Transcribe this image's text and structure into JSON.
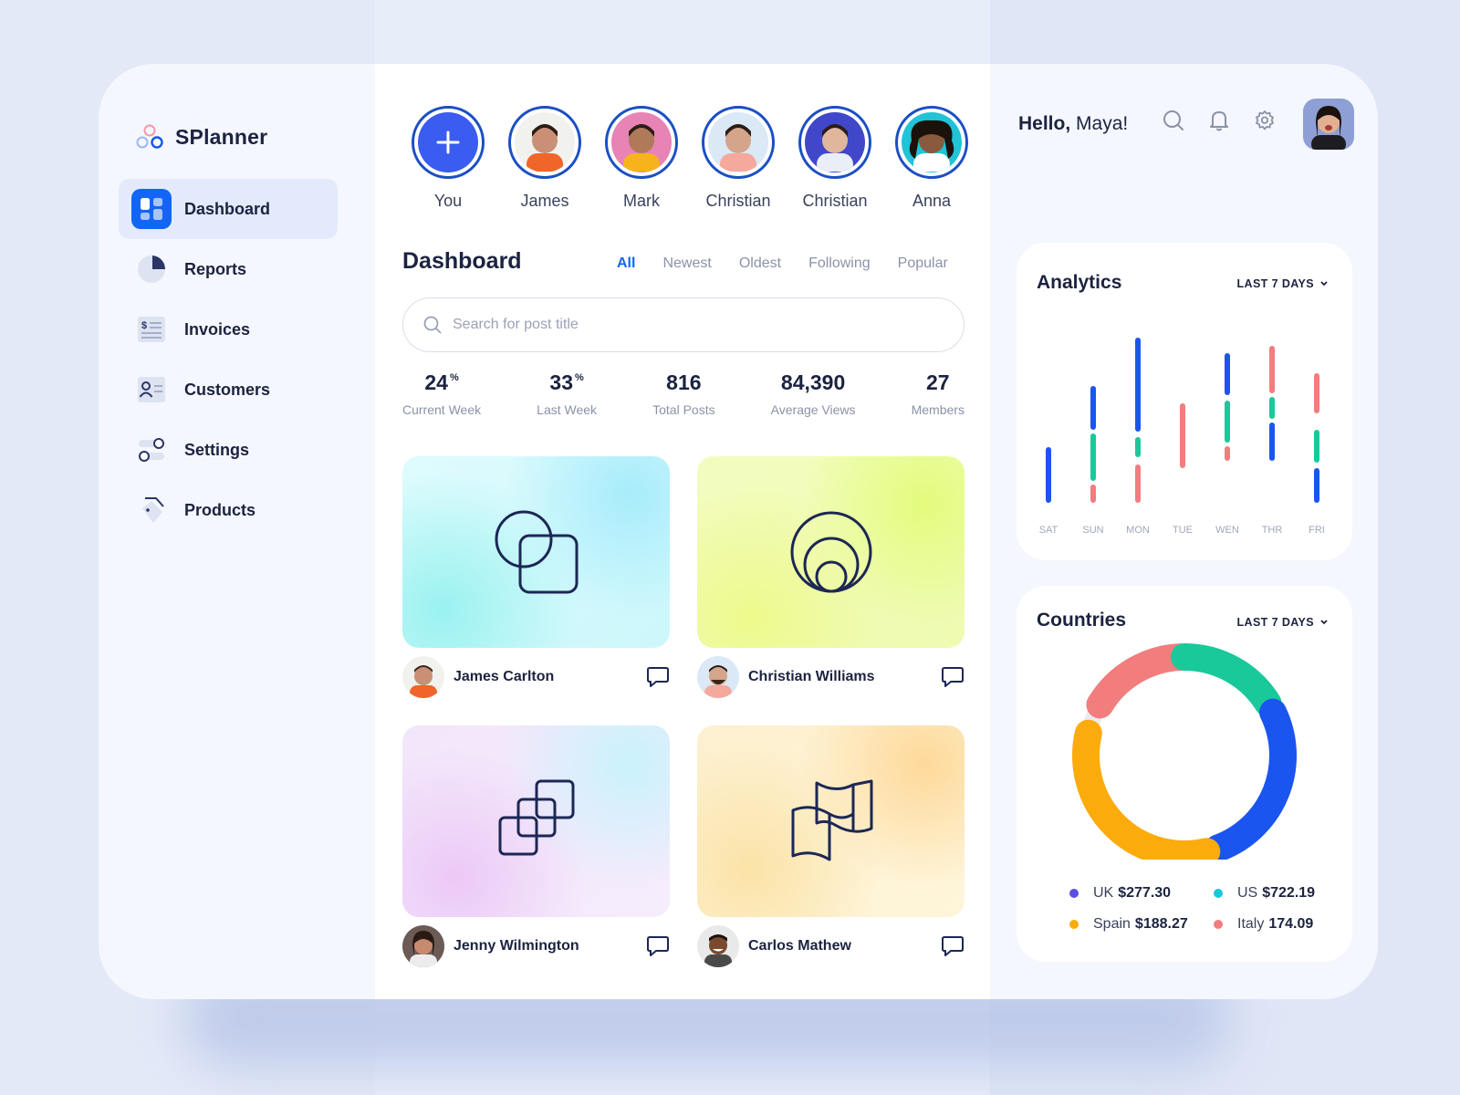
{
  "app": {
    "name": "SPlanner"
  },
  "nav": [
    {
      "label": "Dashboard",
      "icon": "dashboard-icon",
      "active": true
    },
    {
      "label": "Reports",
      "icon": "pie-chart-icon"
    },
    {
      "label": "Invoices",
      "icon": "invoice-icon"
    },
    {
      "label": "Customers",
      "icon": "customer-card-icon"
    },
    {
      "label": "Settings",
      "icon": "toggle-settings-icon"
    },
    {
      "label": "Products",
      "icon": "tag-icon"
    }
  ],
  "stories": [
    {
      "name": "You",
      "avatar": "add-story-icon",
      "color": "#3a5cf0"
    },
    {
      "name": "James",
      "avatar": "avatar-james",
      "color": "#f1f1ee"
    },
    {
      "name": "Mark",
      "avatar": "avatar-mark",
      "color": "#e883b6"
    },
    {
      "name": "Christian",
      "avatar": "avatar-christian",
      "color": "#dbe8f6"
    },
    {
      "name": "Christian",
      "avatar": "avatar-christian-2",
      "color": "#4047c9"
    },
    {
      "name": "Anna",
      "avatar": "avatar-anna",
      "color": "#21c3d6"
    }
  ],
  "dashboard": {
    "title": "Dashboard",
    "filters": [
      "All",
      "Newest",
      "Oldest",
      "Following",
      "Popular"
    ],
    "active_filter": "All",
    "search_placeholder": "Search for post title"
  },
  "stats": [
    {
      "value": "24",
      "unit": "%",
      "label": "Current Week"
    },
    {
      "value": "33",
      "unit": "%",
      "label": "Last Week"
    },
    {
      "value": "816",
      "unit": "",
      "label": "Total Posts"
    },
    {
      "value": "84,390",
      "unit": "",
      "label": "Average Views"
    },
    {
      "value": "27",
      "unit": "",
      "label": "Members"
    }
  ],
  "posts": [
    {
      "author": "James Carlton",
      "art": "overlapping-circle-square-icon"
    },
    {
      "author": "Christian Williams",
      "art": "nested-circles-icon"
    },
    {
      "author": "Jenny Wilmington",
      "art": "stacked-squares-icon"
    },
    {
      "author": "Carlos Mathew",
      "art": "folded-map-icon"
    }
  ],
  "header": {
    "greeting": "Hello,",
    "user": "Maya!"
  },
  "analytics": {
    "title": "Analytics",
    "range": "LAST 7 DAYS",
    "colors": {
      "blue": "#1a55f0",
      "green": "#19c99a",
      "red": "#f27d7d"
    }
  },
  "chart_data": [
    {
      "type": "bar",
      "title": "Analytics",
      "categories": [
        "SAT",
        "SUN",
        "MON",
        "TUE",
        "WEN",
        "THR",
        "FRI"
      ],
      "series": [
        {
          "color": "#1a55f0",
          "values": [
            [
              0,
              35
            ],
            [
              76,
              102
            ],
            [
              0,
              185
            ]
          ]
        },
        {
          "color": "#19c99a"
        },
        {
          "color": "#f27d7d"
        }
      ],
      "stacks": [
        [
          {
            "c": "blue",
            "from": 0,
            "to": 55
          }
        ],
        [
          {
            "c": "red",
            "from": 0,
            "to": 14
          },
          {
            "c": "green",
            "from": 24,
            "to": 70
          },
          {
            "c": "blue",
            "from": 80,
            "to": 122
          }
        ],
        [
          {
            "c": "red",
            "from": 0,
            "to": 36
          },
          {
            "c": "green",
            "from": 50,
            "to": 66
          },
          {
            "c": "blue",
            "from": 78,
            "to": 175
          }
        ],
        [
          {
            "c": "red",
            "from": 38,
            "to": 103
          }
        ],
        [
          {
            "c": "red",
            "from": 46,
            "to": 56
          },
          {
            "c": "green",
            "from": 66,
            "to": 106
          },
          {
            "c": "blue",
            "from": 118,
            "to": 158
          }
        ],
        [
          {
            "c": "blue",
            "from": 46,
            "to": 82
          },
          {
            "c": "green",
            "from": 92,
            "to": 110
          },
          {
            "c": "red",
            "from": 120,
            "to": 166
          }
        ],
        [
          {
            "c": "blue",
            "from": 0,
            "to": 32
          },
          {
            "c": "green",
            "from": 44,
            "to": 74
          },
          {
            "c": "red",
            "from": 98,
            "to": 136
          }
        ]
      ]
    },
    {
      "type": "pie",
      "title": "Countries",
      "slices": [
        {
          "label": "UK",
          "value": 277.3,
          "display": "$277.30",
          "color": "#5a4fe0"
        },
        {
          "label": "US",
          "value": 722.19,
          "display": "$722.19",
          "color": "#16c8dc"
        },
        {
          "label": "Spain",
          "value": 188.27,
          "display": "$188.27",
          "color": "#fbab0c"
        },
        {
          "label": "Italy",
          "value": 174.09,
          "display": "174.09",
          "color": "#f27d7d"
        }
      ]
    }
  ],
  "countries": {
    "title": "Countries",
    "range": "LAST 7 DAYS",
    "ring_segments": [
      {
        "color": "#f27d7d",
        "from": 301,
        "to": 358
      },
      {
        "color": "#19c99a",
        "from": 0,
        "to": 58
      },
      {
        "color": "#1a55f0",
        "from": 64,
        "to": 160
      },
      {
        "color": "#fbab0c",
        "from": 167,
        "to": 283
      }
    ]
  }
}
